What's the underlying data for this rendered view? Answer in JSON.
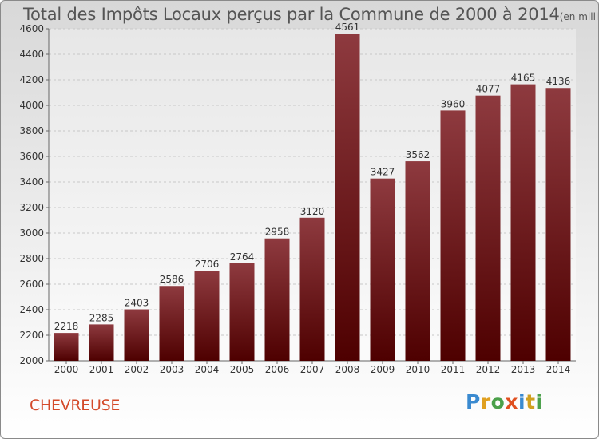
{
  "title": "Total des Impôts Locaux perçus par la Commune de 2000 à 2014",
  "subtitle": "(en milliers d'€)",
  "commune": "CHEVREUSE",
  "logo": {
    "p": "P",
    "r": "r",
    "o": "o",
    "x": "x",
    "i": "i",
    "t": "t",
    "i2": "i"
  },
  "colors": {
    "bar_top": "#8e3a3f",
    "bar_bottom": "#4e0000",
    "grid": "#c8c8c8"
  },
  "chart_data": {
    "type": "bar",
    "title": "Total des Impôts Locaux perçus par la Commune de 2000 à 2014",
    "ylabel": "en milliers d'€",
    "categories": [
      "2000",
      "2001",
      "2002",
      "2003",
      "2004",
      "2005",
      "2006",
      "2007",
      "2008",
      "2009",
      "2010",
      "2011",
      "2012",
      "2013",
      "2014"
    ],
    "values": [
      2218,
      2285,
      2403,
      2586,
      2706,
      2764,
      2958,
      3120,
      4561,
      3427,
      3562,
      3960,
      4077,
      4165,
      4136
    ],
    "ylim": [
      2000,
      4600
    ],
    "yticks": [
      2000,
      2200,
      2400,
      2600,
      2800,
      3000,
      3200,
      3400,
      3600,
      3800,
      4000,
      4200,
      4400,
      4600
    ],
    "grid": true
  }
}
